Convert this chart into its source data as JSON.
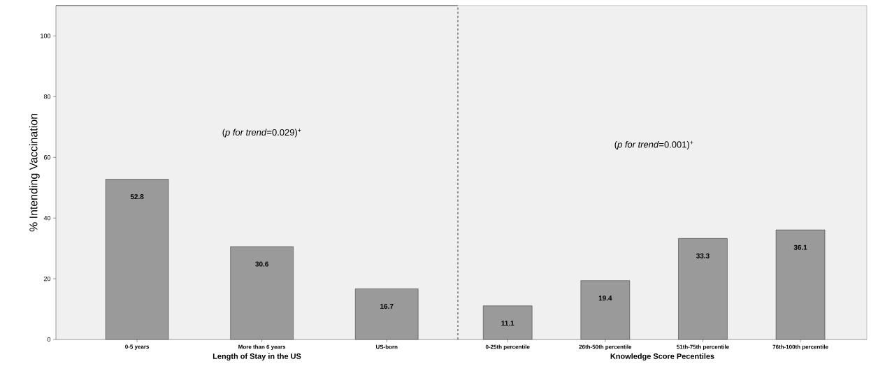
{
  "chart_data": [
    {
      "type": "bar",
      "categories": [
        "0-5 years",
        "More than 6 years",
        "US-born"
      ],
      "values": [
        52.8,
        30.6,
        16.7
      ],
      "color": "#9a9a9a",
      "ylim": [
        0,
        110
      ],
      "yticks": [
        0,
        20,
        40,
        60,
        80,
        100
      ],
      "xlabel": "Length of Stay in the US",
      "ylabel": "% Intending Vaccination",
      "annotations": [
        "(*p for trend*=0.029)$^{+}$"
      ],
      "data_labels": true
    },
    {
      "type": "bar",
      "categories": [
        "0-25th percentile",
        "26th-50th percentile",
        "51th-75th percentile",
        "76th-100th percentile"
      ],
      "values": [
        11.1,
        19.4,
        33.3,
        36.1
      ],
      "color": "#9a9a9a",
      "ylim": [
        0,
        110
      ],
      "yticks": [
        0,
        20,
        40,
        60,
        80,
        100
      ],
      "xlabel": "Knowledge Score Pecentiles",
      "annotations": [
        "(*p for trend*=0.001)$^{+}$"
      ],
      "data_labels": true,
      "tick_labels": "x"
    }
  ]
}
